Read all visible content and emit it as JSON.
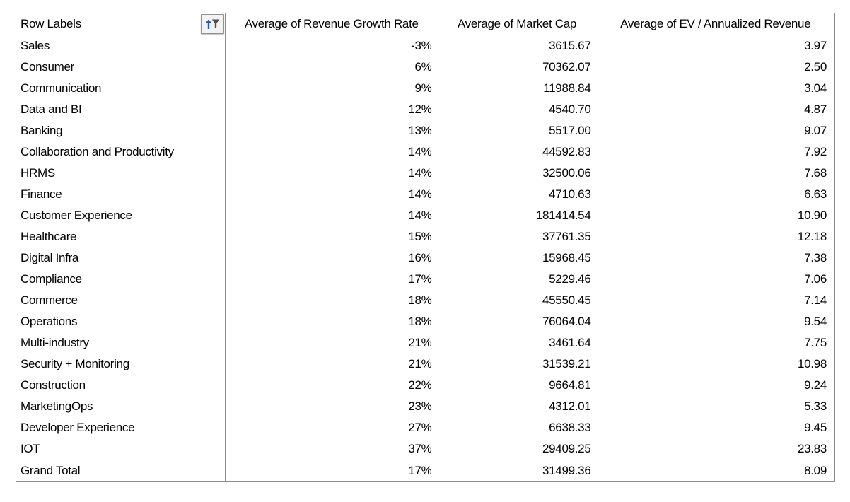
{
  "table": {
    "columns": [
      {
        "label": "Row Labels"
      },
      {
        "label": "Average of Revenue Growth Rate"
      },
      {
        "label": "Average of Market Cap"
      },
      {
        "label": "Average of EV / Annualized Revenue"
      }
    ],
    "row_labels_button": {
      "icon": "sort-ascending-filter-icon",
      "state": "sorted-and-filtered"
    },
    "rows": [
      {
        "label": "Sales",
        "growth": "-3%",
        "market_cap": "3615.67",
        "ev": "3.97"
      },
      {
        "label": "Consumer",
        "growth": "6%",
        "market_cap": "70362.07",
        "ev": "2.50"
      },
      {
        "label": "Communication",
        "growth": "9%",
        "market_cap": "11988.84",
        "ev": "3.04"
      },
      {
        "label": "Data and BI",
        "growth": "12%",
        "market_cap": "4540.70",
        "ev": "4.87"
      },
      {
        "label": "Banking",
        "growth": "13%",
        "market_cap": "5517.00",
        "ev": "9.07"
      },
      {
        "label": "Collaboration and Productivity",
        "growth": "14%",
        "market_cap": "44592.83",
        "ev": "7.92"
      },
      {
        "label": "HRMS",
        "growth": "14%",
        "market_cap": "32500.06",
        "ev": "7.68"
      },
      {
        "label": "Finance",
        "growth": "14%",
        "market_cap": "4710.63",
        "ev": "6.63"
      },
      {
        "label": "Customer Experience",
        "growth": "14%",
        "market_cap": "181414.54",
        "ev": "10.90"
      },
      {
        "label": "Healthcare",
        "growth": "15%",
        "market_cap": "37761.35",
        "ev": "12.18"
      },
      {
        "label": "Digital Infra",
        "growth": "16%",
        "market_cap": "15968.45",
        "ev": "7.38"
      },
      {
        "label": "Compliance",
        "growth": "17%",
        "market_cap": "5229.46",
        "ev": "7.06"
      },
      {
        "label": "Commerce",
        "growth": "18%",
        "market_cap": "45550.45",
        "ev": "7.14"
      },
      {
        "label": "Operations",
        "growth": "18%",
        "market_cap": "76064.04",
        "ev": "9.54"
      },
      {
        "label": "Multi-industry",
        "growth": "21%",
        "market_cap": "3461.64",
        "ev": "7.75"
      },
      {
        "label": "Security + Monitoring",
        "growth": "21%",
        "market_cap": "31539.21",
        "ev": "10.98"
      },
      {
        "label": "Construction",
        "growth": "22%",
        "market_cap": "9664.81",
        "ev": "9.24"
      },
      {
        "label": "MarketingOps",
        "growth": "23%",
        "market_cap": "4312.01",
        "ev": "5.33"
      },
      {
        "label": "Developer Experience",
        "growth": "27%",
        "market_cap": "6638.33",
        "ev": "9.45"
      },
      {
        "label": "IOT",
        "growth": "37%",
        "market_cap": "29409.25",
        "ev": "23.83"
      }
    ],
    "grand_total": {
      "label": "Grand Total",
      "growth": "17%",
      "market_cap": "31499.36",
      "ev": "8.09"
    }
  },
  "colors": {
    "table_border": "#8c8c8c",
    "text": "#000000",
    "filter_button_bg": "#f2f2f2",
    "filter_button_border": "#919191",
    "sort_arrow_blue": "#2e5b9b",
    "funnel_gray": "#4d4d4d",
    "background": "#ffffff"
  }
}
